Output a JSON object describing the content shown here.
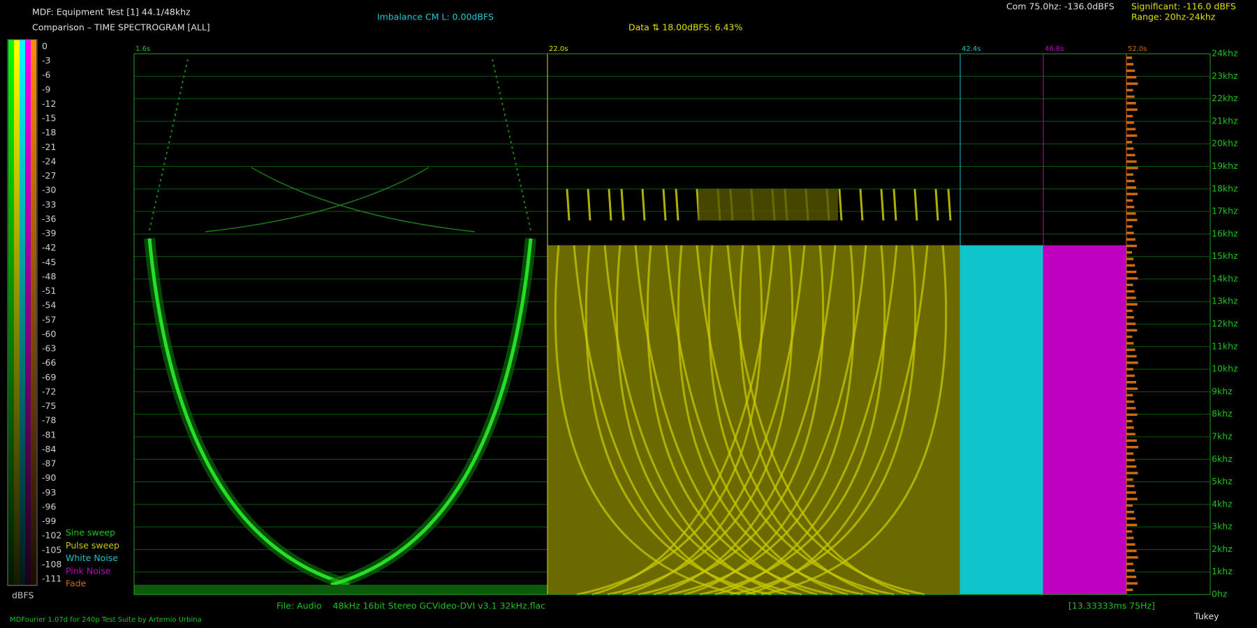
{
  "header": {
    "title": "MDF: Equipment Test [1] 44.1/48khz",
    "subtitle": "Comparison – TIME SPECTROGRAM [ALL]",
    "imbalance": "Imbalance CM L: 0.00dBFS",
    "data_info": "Data ⇅ 18.00dBFS: 6.43%",
    "com": "Com 75.0hz: -136.0dBFS",
    "significant": "Significant: -116.0 dBFS",
    "range": "Range: 20hz-24khz"
  },
  "scale": {
    "labels": [
      "0",
      "-3",
      "-6",
      "-9",
      "-12",
      "-15",
      "-18",
      "-21",
      "-24",
      "-27",
      "-30",
      "-33",
      "-36",
      "-39",
      "-42",
      "-45",
      "-48",
      "-51",
      "-54",
      "-57",
      "-60",
      "-63",
      "-66",
      "-69",
      "-72",
      "-75",
      "-78",
      "-81",
      "-84",
      "-87",
      "-90",
      "-93",
      "-96",
      "-99",
      "-102",
      "-105",
      "-108",
      "-111"
    ],
    "unit": "dBFS"
  },
  "legend": [
    "Sine sweep",
    "Pulse sweep",
    "White Noise",
    "Pink Noise",
    "Fade"
  ],
  "time_markers": [
    "1.6s",
    "22.0s",
    "42.4s",
    "46.8s",
    "52.0s"
  ],
  "frequency_labels": [
    "24khz",
    "23khz",
    "22khz",
    "21khz",
    "20khz",
    "19khz",
    "18khz",
    "17khz",
    "16khz",
    "15khz",
    "14khz",
    "13khz",
    "12khz",
    "11khz",
    "10khz",
    "9khz",
    "8khz",
    "7khz",
    "6khz",
    "5khz",
    "4khz",
    "3khz",
    "2khz",
    "1khz",
    "0hz"
  ],
  "footer": {
    "file": "File: Audio    48kHz 16bit Stereo GCVideo-DVI v3.1 32kHz.flac",
    "window": "[13.33333ms 75Hz]",
    "credit": "MDFourier 1.07d for 240p Test Suite by Artemio Urbina",
    "function": "Tukey"
  }
}
